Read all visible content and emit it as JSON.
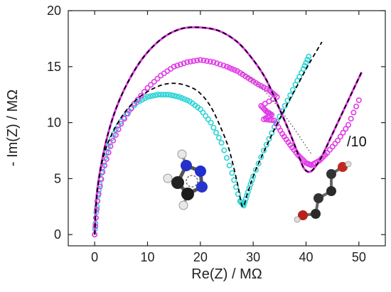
{
  "chart_data": {
    "type": "scatter",
    "title": "",
    "xlabel": "Re(Z) / MΩ",
    "ylabel": "- Im(Z) / MΩ",
    "xlim": [
      -5,
      55
    ],
    "ylim": [
      -1,
      20
    ],
    "x_ticks": [
      0,
      10,
      20,
      30,
      40,
      50
    ],
    "x_tick_labels": [
      "0",
      "10",
      "20",
      "30",
      "40",
      "50"
    ],
    "y_ticks": [
      0,
      5,
      10,
      15,
      20
    ],
    "y_tick_labels": [
      "0",
      "5",
      "10",
      "15",
      "20"
    ],
    "grid": false,
    "annotations": [
      "/10"
    ],
    "series": [
      {
        "color": "#2ed3d6",
        "style": "markers",
        "points": [
          [
            0,
            0
          ],
          [
            0.3,
            2
          ],
          [
            0.8,
            4
          ],
          [
            1.5,
            6
          ],
          [
            2.5,
            7.8
          ],
          [
            4,
            9.4
          ],
          [
            6,
            10.8
          ],
          [
            8,
            11.8
          ],
          [
            10,
            12.3
          ],
          [
            12,
            12.5
          ],
          [
            14,
            12.5
          ],
          [
            16,
            12.3
          ],
          [
            18,
            11.9
          ],
          [
            20,
            11.2
          ],
          [
            22,
            10
          ],
          [
            24,
            8.2
          ],
          [
            26,
            5.5
          ],
          [
            27.5,
            3
          ],
          [
            28.2,
            2.6
          ],
          [
            29,
            3.8
          ],
          [
            30,
            5.2
          ],
          [
            32,
            7.5
          ],
          [
            34,
            9.6
          ],
          [
            36,
            11.5
          ],
          [
            38,
            13.4
          ],
          [
            39.5,
            14.8
          ],
          [
            40.5,
            15.9
          ]
        ]
      },
      {
        "color": "#000000",
        "style": "dashed-fit",
        "points": [
          [
            0,
            0
          ],
          [
            0.3,
            3
          ],
          [
            1,
            5.5
          ],
          [
            2,
            7.5
          ],
          [
            3.5,
            9.2
          ],
          [
            5.5,
            10.8
          ],
          [
            8,
            12.1
          ],
          [
            10.5,
            12.9
          ],
          [
            13,
            13.4
          ],
          [
            15.5,
            13.5
          ],
          [
            18,
            13.2
          ],
          [
            20,
            12.6
          ],
          [
            22,
            11.4
          ],
          [
            24,
            9.4
          ],
          [
            25.5,
            7.5
          ],
          [
            27,
            4.6
          ],
          [
            28,
            2.5
          ],
          [
            29,
            3.8
          ],
          [
            30.5,
            5.8
          ],
          [
            33,
            8.4
          ],
          [
            35.5,
            10.8
          ],
          [
            38,
            13
          ],
          [
            40.5,
            15.2
          ],
          [
            43,
            17.2
          ]
        ]
      },
      {
        "color": "#e03ce6",
        "style": "markers",
        "points": [
          [
            0,
            0
          ],
          [
            0.5,
            3
          ],
          [
            1.5,
            5.6
          ],
          [
            3,
            7.9
          ],
          [
            5,
            9.9
          ],
          [
            7.5,
            11.7
          ],
          [
            10,
            13.1
          ],
          [
            12.5,
            14.2
          ],
          [
            15,
            15
          ],
          [
            17.5,
            15.4
          ],
          [
            20,
            15.6
          ],
          [
            22.5,
            15.4
          ],
          [
            25,
            15
          ],
          [
            27,
            14.6
          ],
          [
            29,
            14
          ],
          [
            31,
            13.4
          ],
          [
            33,
            12.9
          ],
          [
            34.5,
            12.3
          ],
          [
            31.5,
            11.5
          ],
          [
            32.5,
            11
          ],
          [
            33.5,
            10.7
          ],
          [
            32,
            10.3
          ],
          [
            34,
            10.2
          ],
          [
            35.5,
            9
          ],
          [
            37,
            8
          ],
          [
            38.5,
            7.1
          ],
          [
            40,
            6.4
          ],
          [
            41,
            6.2
          ],
          [
            42.5,
            6.6
          ],
          [
            44,
            7.3
          ],
          [
            46,
            8.4
          ],
          [
            48,
            9.8
          ],
          [
            50,
            12
          ]
        ]
      },
      {
        "color": "#e03ce6",
        "style": "line",
        "points": [
          [
            0,
            0
          ],
          [
            0.5,
            4
          ],
          [
            2,
            8
          ],
          [
            4,
            11.2
          ],
          [
            6.5,
            13.8
          ],
          [
            9.5,
            16
          ],
          [
            13,
            17.6
          ],
          [
            16.5,
            18.4
          ],
          [
            20,
            18.5
          ],
          [
            23.5,
            18.2
          ],
          [
            27,
            17.2
          ],
          [
            30,
            15.6
          ],
          [
            32.5,
            13.8
          ],
          [
            35,
            11.2
          ],
          [
            37,
            9
          ],
          [
            38.5,
            7.2
          ],
          [
            39.5,
            6
          ],
          [
            40.5,
            5.6
          ],
          [
            41.5,
            5.9
          ],
          [
            43,
            7
          ],
          [
            45,
            9
          ],
          [
            47,
            11
          ],
          [
            49,
            13
          ],
          [
            50.5,
            14.5
          ]
        ]
      },
      {
        "color": "#000000",
        "style": "dashed-fit",
        "points": [
          [
            0,
            0
          ],
          [
            0.5,
            4
          ],
          [
            2,
            8
          ],
          [
            4,
            11.2
          ],
          [
            6.5,
            13.8
          ],
          [
            9.5,
            16
          ],
          [
            13,
            17.6
          ],
          [
            16.5,
            18.4
          ],
          [
            20,
            18.5
          ],
          [
            23.5,
            18.2
          ],
          [
            27,
            17.2
          ],
          [
            30,
            15.6
          ],
          [
            32.5,
            13.8
          ],
          [
            35,
            11.2
          ],
          [
            37,
            9
          ],
          [
            38.5,
            7.2
          ],
          [
            39.5,
            6
          ],
          [
            40.5,
            5.6
          ],
          [
            41.5,
            5.9
          ],
          [
            43,
            7
          ],
          [
            45,
            9
          ],
          [
            47,
            11
          ],
          [
            49,
            13
          ],
          [
            50.5,
            14.5
          ]
        ]
      },
      {
        "color": "#555555",
        "style": "dotted-fit",
        "points": [
          [
            28,
            14.5
          ],
          [
            30,
            13.8
          ],
          [
            32,
            12.9
          ],
          [
            34,
            11.8
          ],
          [
            36,
            10.6
          ],
          [
            38,
            9.3
          ],
          [
            40,
            7.9
          ],
          [
            41,
            7.2
          ]
        ]
      }
    ]
  },
  "molecule_labels": {
    "triazole": "1,2,3-triazole molecule",
    "butanediol": "butanediol molecule"
  }
}
